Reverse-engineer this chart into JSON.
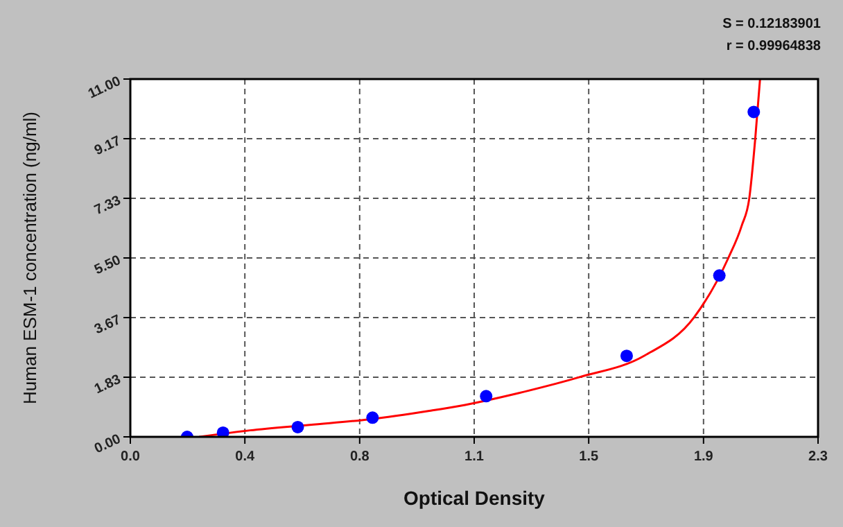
{
  "chart_data": {
    "type": "scatter",
    "xlabel": "Optical Density",
    "ylabel": "Human ESM-1  concentration (ng/ml)",
    "annotations": [
      "S = 0.12183901",
      "r = 0.99964838"
    ],
    "series": [
      {
        "color": "#0000ff",
        "marker": "circle",
        "x": [
          0.19,
          0.31,
          0.56,
          0.81,
          1.19,
          1.66,
          1.97,
          2.085
        ],
        "values": [
          0.0,
          0.13,
          0.3,
          0.59,
          1.25,
          2.49,
          4.96,
          9.99
        ]
      },
      {
        "type": "line",
        "color": "#ff0000",
        "x": [
          0.23,
          0.4,
          0.6,
          0.8,
          1.0,
          1.1,
          1.3,
          1.5,
          1.72,
          1.885,
          2.0,
          2.045,
          2.07,
          2.09,
          2.106
        ],
        "values": [
          0,
          0.2,
          0.37,
          0.54,
          0.8,
          0.95,
          1.35,
          1.83,
          2.5,
          3.67,
          5.5,
          6.5,
          7.33,
          9.17,
          11
        ]
      }
    ],
    "xlim": [
      0,
      2.3
    ],
    "xticks": [
      {
        "value": 0,
        "label": "0.0"
      },
      {
        "value": 0.383,
        "label": "0.4"
      },
      {
        "value": 0.767,
        "label": "0.8"
      },
      {
        "value": 1.15,
        "label": "1.1"
      },
      {
        "value": 1.533,
        "label": "1.5"
      },
      {
        "value": 1.917,
        "label": "1.9"
      },
      2.3
    ],
    "ylim": [
      0,
      11
    ],
    "yticks": [
      {
        "value": 0,
        "label": "0.00"
      },
      {
        "value": 1.833,
        "label": "1.83"
      },
      {
        "value": 3.667,
        "label": "3.67"
      },
      {
        "value": 5.5,
        "label": "5.50"
      },
      {
        "value": 7.333,
        "label": "7.33"
      },
      {
        "value": 9.167,
        "label": "9.17"
      },
      {
        "value": 11,
        "label": "11.00"
      }
    ],
    "grid": true
  }
}
